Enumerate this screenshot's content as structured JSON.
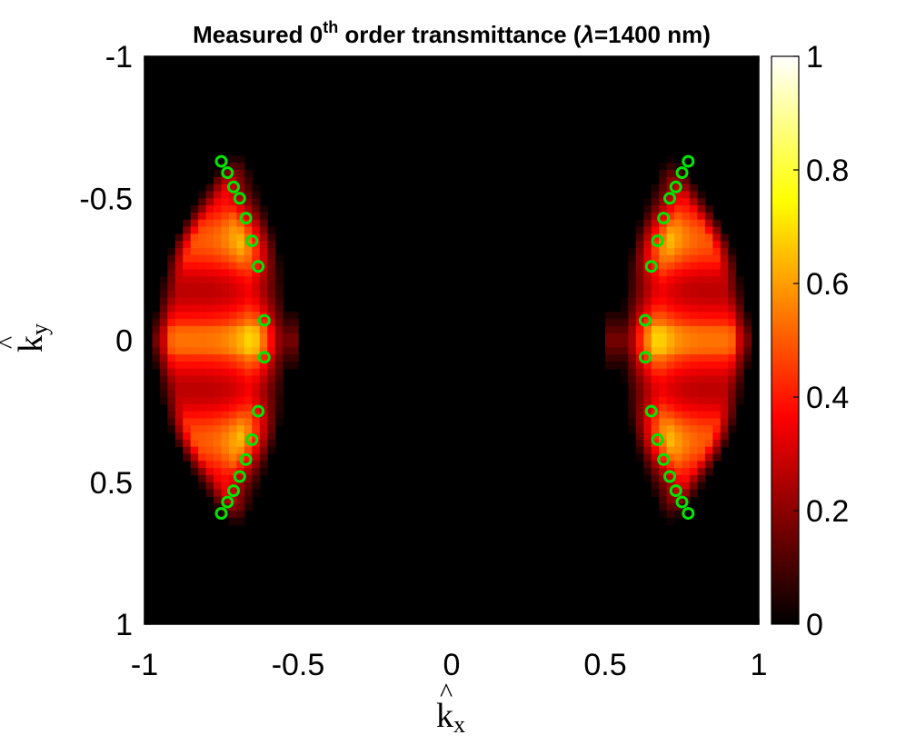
{
  "chart_data": {
    "type": "heatmap",
    "title": {
      "prefix": "Measured 0",
      "superscript": "th",
      "suffix": " order transmittance (",
      "symbol": "λ",
      "tail": "=1400 nm)"
    },
    "xlabel": {
      "base": "k",
      "hat": "^",
      "subscript": "x"
    },
    "ylabel": {
      "base": "k",
      "hat": "^",
      "subscript": "y"
    },
    "xlim": [
      -1,
      1
    ],
    "ylim": [
      -1,
      1
    ],
    "y_reversed": true,
    "x_ticks": [
      -1,
      -0.5,
      0,
      0.5,
      1
    ],
    "x_tick_labels": [
      "-1",
      "-0.5",
      "0",
      "0.5",
      "1"
    ],
    "y_ticks": [
      -1,
      -0.5,
      0,
      0.5,
      1
    ],
    "y_tick_labels": [
      "-1",
      "-0.5",
      "0",
      "0.5",
      "1"
    ],
    "colorbar": {
      "colormap": "hot",
      "range": [
        0,
        1
      ],
      "ticks": [
        0,
        0.2,
        0.4,
        0.6,
        0.8,
        1
      ],
      "tick_labels": [
        "0",
        "0.2",
        "0.4",
        "0.6",
        "0.8",
        "1"
      ]
    },
    "markers": {
      "color": "#00e600",
      "points": [
        [
          -0.75,
          -0.63
        ],
        [
          -0.73,
          -0.59
        ],
        [
          -0.71,
          -0.54
        ],
        [
          -0.69,
          -0.5
        ],
        [
          -0.67,
          -0.43
        ],
        [
          -0.65,
          -0.35
        ],
        [
          -0.63,
          -0.26
        ],
        [
          -0.61,
          -0.07
        ],
        [
          -0.61,
          0.06
        ],
        [
          -0.63,
          0.25
        ],
        [
          -0.65,
          0.35
        ],
        [
          -0.67,
          0.42
        ],
        [
          -0.69,
          0.48
        ],
        [
          -0.71,
          0.53
        ],
        [
          -0.73,
          0.57
        ],
        [
          -0.75,
          0.61
        ],
        [
          0.77,
          -0.63
        ],
        [
          0.75,
          -0.59
        ],
        [
          0.73,
          -0.54
        ],
        [
          0.71,
          -0.5
        ],
        [
          0.69,
          -0.43
        ],
        [
          0.67,
          -0.35
        ],
        [
          0.65,
          -0.26
        ],
        [
          0.63,
          -0.07
        ],
        [
          0.63,
          0.06
        ],
        [
          0.65,
          0.25
        ],
        [
          0.67,
          0.35
        ],
        [
          0.69,
          0.42
        ],
        [
          0.71,
          0.48
        ],
        [
          0.73,
          0.53
        ],
        [
          0.75,
          0.57
        ],
        [
          0.77,
          0.61
        ]
      ]
    },
    "intensity_regions": [
      {
        "side": "left",
        "inner_boundary_kx": -0.61,
        "outer_boundary": "circle r≈0.95",
        "peak": 0.65
      },
      {
        "side": "right",
        "inner_boundary_kx": 0.63,
        "outer_boundary": "circle r≈0.95",
        "peak": 0.65
      }
    ]
  }
}
